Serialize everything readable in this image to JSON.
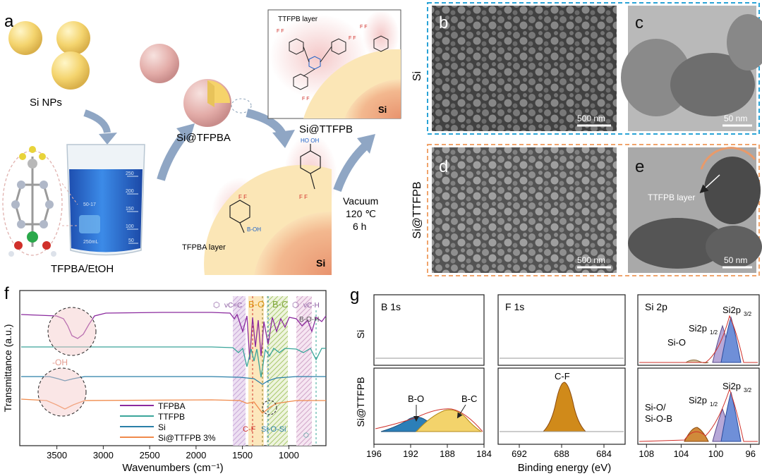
{
  "panel_labels": [
    "a",
    "b",
    "c",
    "d",
    "e",
    "f",
    "g"
  ],
  "panel_a": {
    "si_nps": "Si NPs",
    "si_tfpba": "Si@TFPBA",
    "si_ttfpb": "Si@TTFPB",
    "tfpba_etoh": "TFPBA/EtOH",
    "ttfpb_layer": "TTFPB layer",
    "tfpba_layer": "TFPBA layer",
    "vacuum": "Vacuum",
    "temp": "120 ℃",
    "time": "6 h",
    "si": "Si",
    "beaker_marks": [
      "250",
      "200",
      "150",
      "100",
      "50"
    ],
    "beaker_text": [
      "50-17",
      "250mL"
    ],
    "colors": {
      "yellow_np": "#f2d36b",
      "pink_shell": "#e9b9b5",
      "beaker_blue": "#2f6fd6",
      "arrow": "#8fa6c4"
    }
  },
  "panel_images": {
    "si_row_label": "Si",
    "ttfpb_row_label": "Si@TTFPB",
    "b_scale": "500 nm",
    "c_scale": "50 nm",
    "d_scale": "500 nm",
    "e_scale": "50 nm",
    "e_annotation": "TTFPB layer",
    "colors": {
      "si_frame": "#2aa3d6",
      "ttfpb_frame": "#f0a46c"
    }
  },
  "chart_data": [
    {
      "type": "line",
      "panel": "f",
      "xlabel": "Wavenumbers (cm⁻¹)",
      "ylabel": "Transmittance (a.u.)",
      "xlim": [
        3900,
        600
      ],
      "xticks": [
        3500,
        3000,
        2500,
        2000,
        1500,
        1000
      ],
      "x_reversed": true,
      "series": [
        {
          "name": "TFPBA",
          "color": "#8b2a9e"
        },
        {
          "name": "TTFPB",
          "color": "#3aa59a"
        },
        {
          "name": "Si",
          "color": "#2a7fa8"
        },
        {
          "name": "Si@TTFPB 3%",
          "color": "#f08a4b"
        }
      ],
      "band_labels": [
        "νC=C",
        "B-O",
        "B-C",
        "νC-H",
        "B-O-H",
        "C-F",
        "Si-O-Si",
        "-OH"
      ],
      "band_colors": {
        "ring": "#c9a7d8",
        "bo": "#f2b23a",
        "bc": "#a8c86a",
        "ch": "#d0a4c8",
        "boh": "#6fc7c0"
      }
    },
    {
      "type": "line",
      "panel": "g",
      "xlabel": "Binding energy (eV)",
      "rows": [
        "Si",
        "Si@TTFPB"
      ],
      "subplots": [
        {
          "title": "B 1s",
          "xlim": [
            196,
            184
          ],
          "xticks": [
            196,
            192,
            188,
            184
          ],
          "peaks": [
            {
              "label": "B-O",
              "center": 191.5,
              "color": "#2c7fb8"
            },
            {
              "label": "B-C",
              "center": 188.5,
              "color": "#f3d36b"
            }
          ]
        },
        {
          "title": "F 1s",
          "xlim": [
            694,
            682
          ],
          "xticks": [
            692,
            688,
            684
          ],
          "peaks": [
            {
              "label": "C-F",
              "center": 688.0,
              "color": "#d08a1a"
            }
          ]
        },
        {
          "title": "Si 2p",
          "xlim": [
            109,
            95
          ],
          "xticks": [
            108,
            104,
            100,
            96
          ],
          "peaks_si": [
            {
              "label": "Si-O",
              "center": 102.8
            },
            {
              "label": "Si2p1/2",
              "center": 99.4
            },
            {
              "label": "Si2p3/2",
              "center": 98.6
            }
          ],
          "peaks_ttfpb": [
            {
              "label": "Si-O/\nSi-O-B",
              "center": 102.8
            },
            {
              "label": "Si2p1/2",
              "center": 99.4
            },
            {
              "label": "Si2p3/2",
              "center": 98.6
            }
          ]
        }
      ],
      "peak_labels_text": {
        "si_o": "Si-O",
        "si_o_b_1": "Si-O/",
        "si_o_b_2": "Si-O-B",
        "si2p12": "Si2p",
        "si2p32": "Si2p",
        "sub12": "1/2",
        "sub32": "3/2"
      }
    }
  ]
}
